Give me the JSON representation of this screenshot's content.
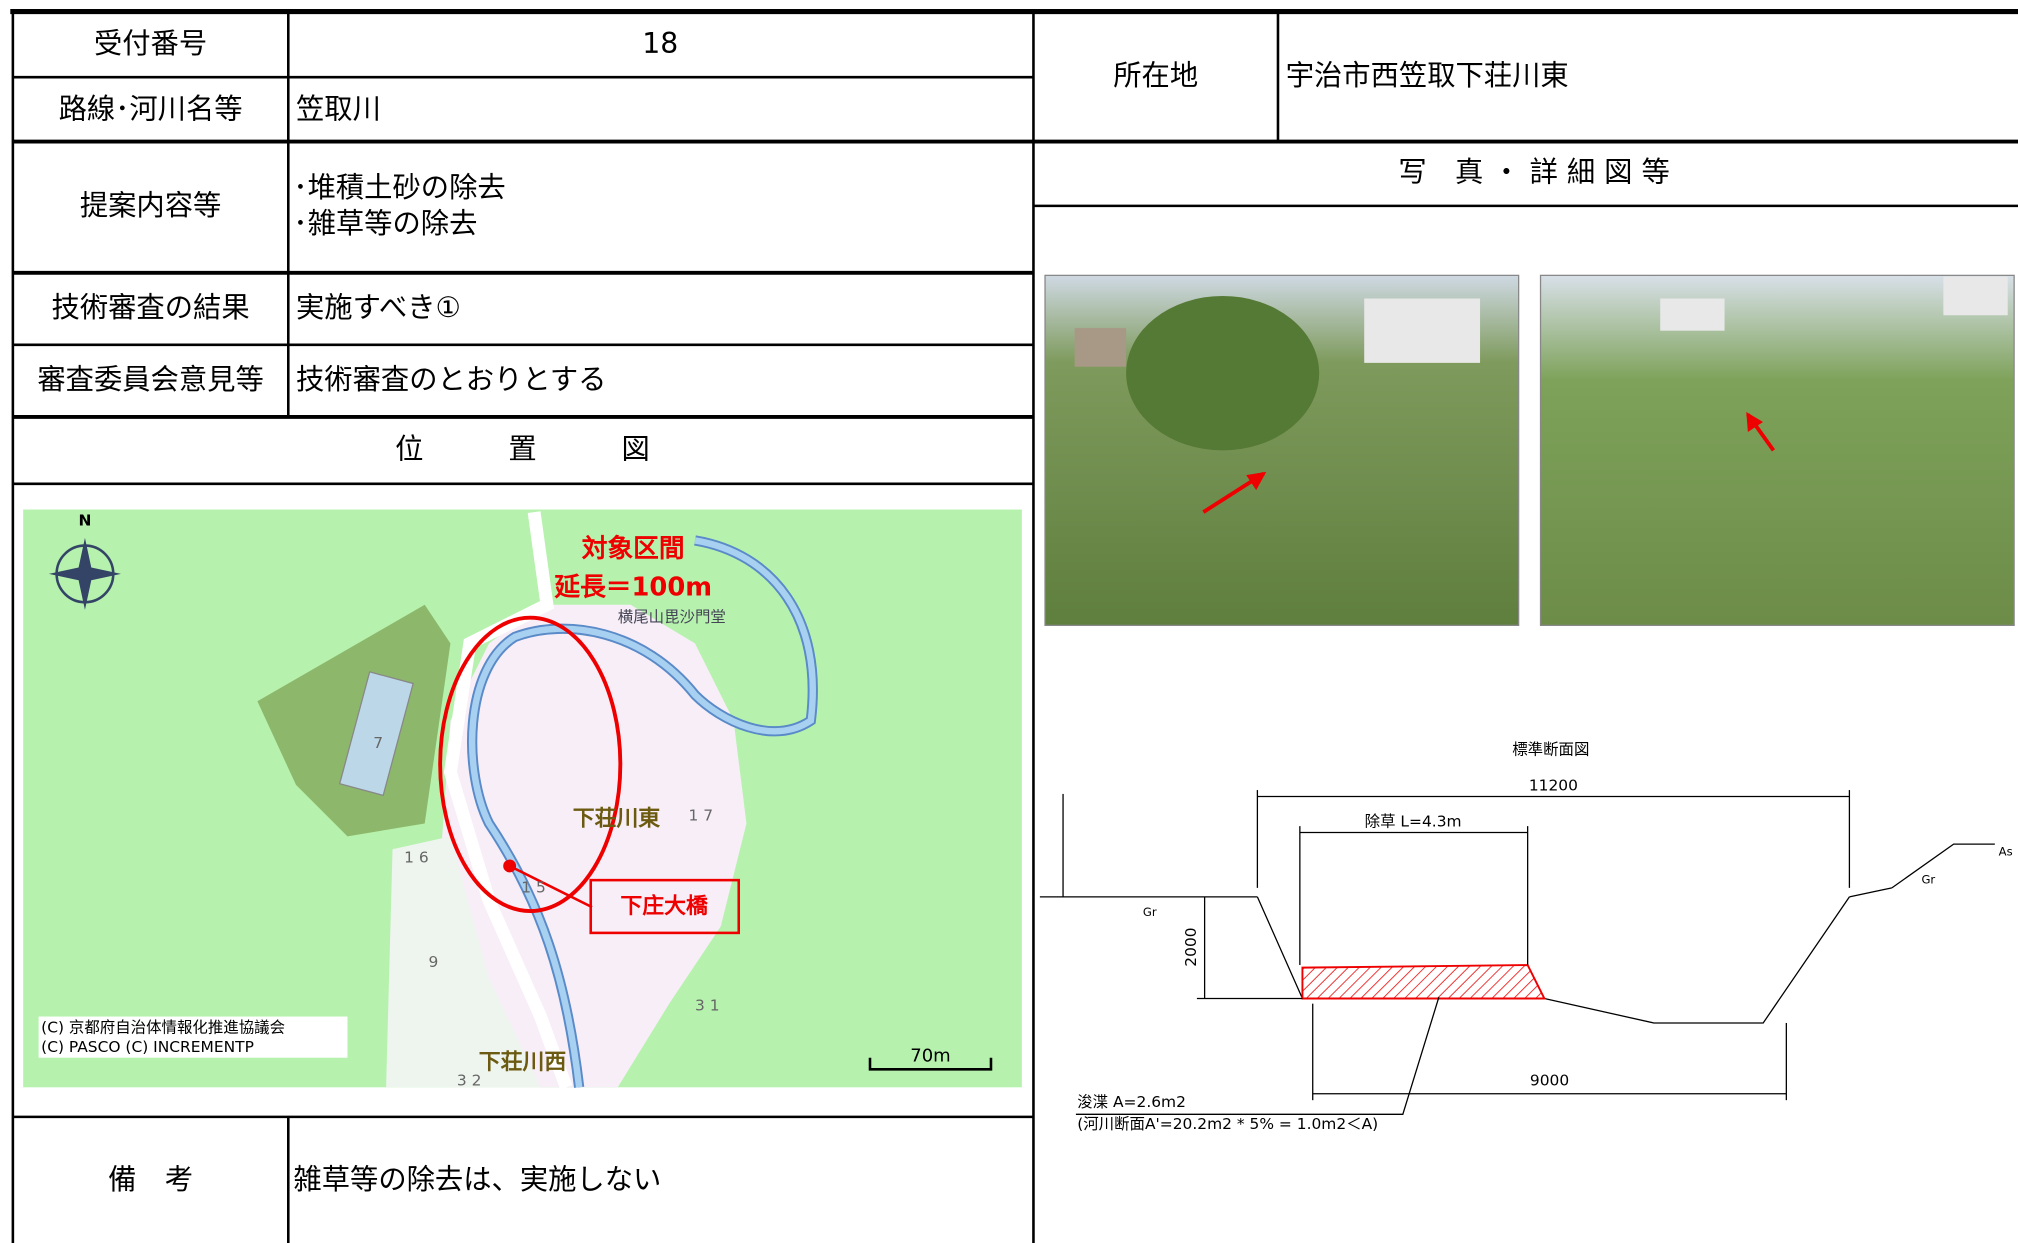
{
  "header": {
    "receipt_label": "受付番号",
    "receipt_no": "18",
    "route_label": "路線･河川名等",
    "route": "笠取川",
    "location_label": "所在地",
    "location": "宇治市西笠取下荘川東"
  },
  "proposal": {
    "label": "提案内容等",
    "items": [
      "･堆積土砂の除去",
      "･雑草等の除去"
    ]
  },
  "review": {
    "label": "技術審査の結果",
    "result": "実施すべき①"
  },
  "committee": {
    "label": "審査委員会意見等",
    "opinion": "技術審査のとおりとする"
  },
  "map": {
    "title": "位　　　置　　　図",
    "north": "N",
    "target": "対象区間",
    "length": "延長＝100m",
    "temple": "横尾山毘沙門堂",
    "east": "下荘川東",
    "bridge": "下庄大橋",
    "west": "下荘川西",
    "copyright1": "(C) 京都府自治体情報化推進協議会",
    "copyright2": "(C) PASCO (C) INCREMENTP",
    "scale": "70m",
    "numbers": [
      "7",
      "1 6",
      "1 7",
      "1 5",
      "9",
      "3 1",
      "3 2"
    ]
  },
  "photos": {
    "title": "写　真 ・ 詳 細 図 等"
  },
  "section": {
    "title": "標準断面図",
    "width": "11200",
    "weeding": "除草 L=4.3m",
    "depth": "2000",
    "bottom": "9000",
    "gr_left": "Gr",
    "gr_right": "Gr",
    "as": "As",
    "dredge": "浚渫 A=2.6m2",
    "note": "(河川断面A'=20.2m2 * 5% = 1.0m2＜A)"
  },
  "remarks": {
    "label": "備　考",
    "text": "雑草等の除去は、実施しない"
  }
}
